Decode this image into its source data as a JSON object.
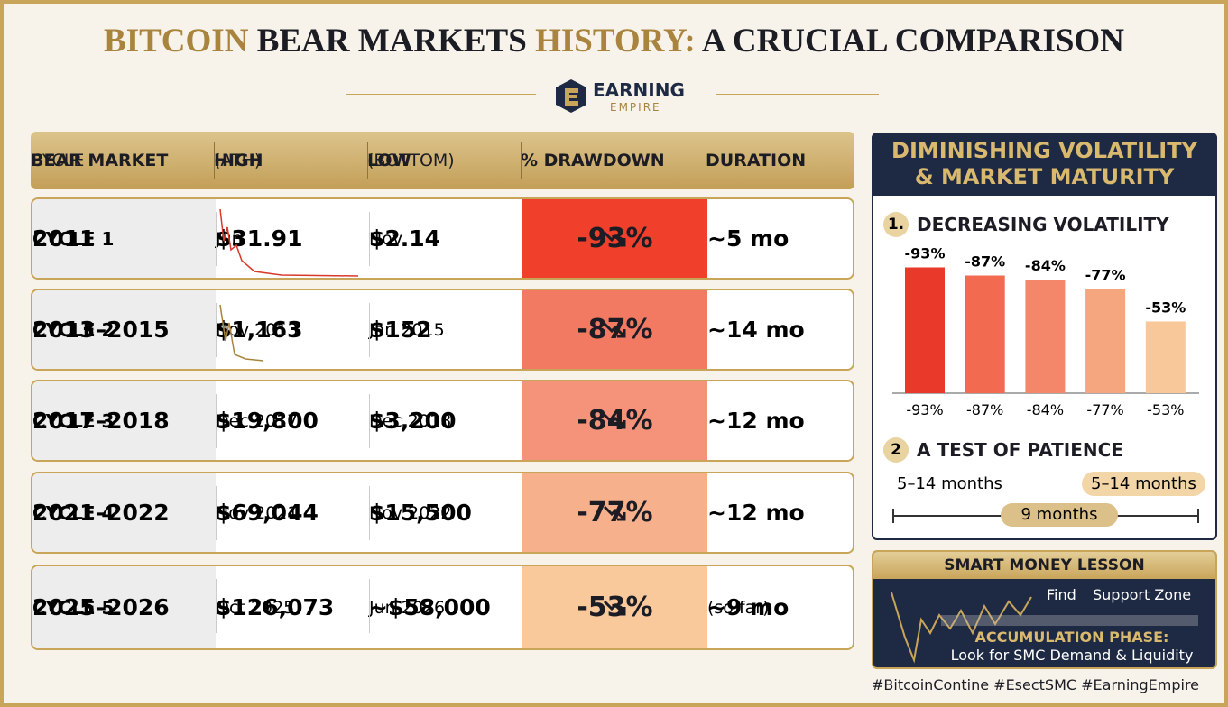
{
  "header": {
    "title_parts": [
      "BITCOIN",
      "BEAR MARKETS",
      "HISTORY:",
      "A CRUCIAL COMPARISON"
    ],
    "logo": {
      "top": "EARNING",
      "bottom": "EMPIRE"
    }
  },
  "table": {
    "columns": [
      [
        "BEAR MARKET",
        "CYCLE"
      ],
      [
        "HIGH",
        "(ATH)"
      ],
      [
        "LOW",
        "(BOTTOM)"
      ],
      [
        "% DRAWDOWN"
      ],
      [
        "DURATION"
      ]
    ],
    "rows": [
      [
        "CYCLE 1",
        "2011",
        "$31.91",
        "Jun",
        "$2.14",
        "Nov",
        "-93%",
        "~5 mo"
      ],
      [
        "CYCLE 2",
        "2013–2015",
        "$1,163",
        "Nov 2013",
        "$152",
        "Jan 2015",
        "-87%",
        "~14 mo"
      ],
      [
        "CYCLE 3",
        "2017–2018",
        "$19,800",
        "Dec 2017",
        "$3,200",
        "Dec 2018",
        "-84%",
        "~12 mo"
      ],
      [
        "CYCLE 4",
        "2021–2022",
        "$69,044",
        "Nov 2021",
        "$15,500",
        "Nov 2022",
        "-77%",
        "~12 mo"
      ],
      [
        "CYCLE 5",
        "2025–2026",
        "$126,073",
        "Oct 2025",
        "~$58,000",
        "Jun 2026",
        "-53%",
        "~9 mo",
        "(so far)"
      ]
    ],
    "drawdown_colors": [
      "#f0402c",
      "#f37a62",
      "#f4937a",
      "#f6b08c",
      "#f9c99c"
    ]
  },
  "sidebar": {
    "title": [
      "DIMINISHING VOLATILITY",
      "& MARKET MATURITY"
    ],
    "section1": {
      "number": "1.",
      "label": "DECREASING VOLATILITY"
    },
    "section2": {
      "number": "2",
      "label": "A TEST OF PATIENCE"
    },
    "timeline": {
      "left": "5–14 months",
      "right": "5–14 months",
      "center": "9 months"
    },
    "lesson": {
      "title": "SMART MONEY LESSON",
      "find": "Find",
      "zone": "Support Zone",
      "phase": "ACCUMULATION PHASE:",
      "note": "Look for SMC Demand & Liquidity"
    }
  },
  "chart_data": {
    "type": "bar",
    "values": [
      -93,
      -87,
      -84,
      -77,
      -53
    ],
    "value_labels": [
      "-93%",
      "-87%",
      "-84%",
      "-77%",
      "-53%"
    ],
    "colors": [
      "#e8392a",
      "#f26a50",
      "#f4876a",
      "#f5a67e",
      "#f8c79a"
    ],
    "ylim": [
      0,
      -100
    ]
  },
  "footer": "#BitcoinContine #EsectSMC #EarningEmpire"
}
